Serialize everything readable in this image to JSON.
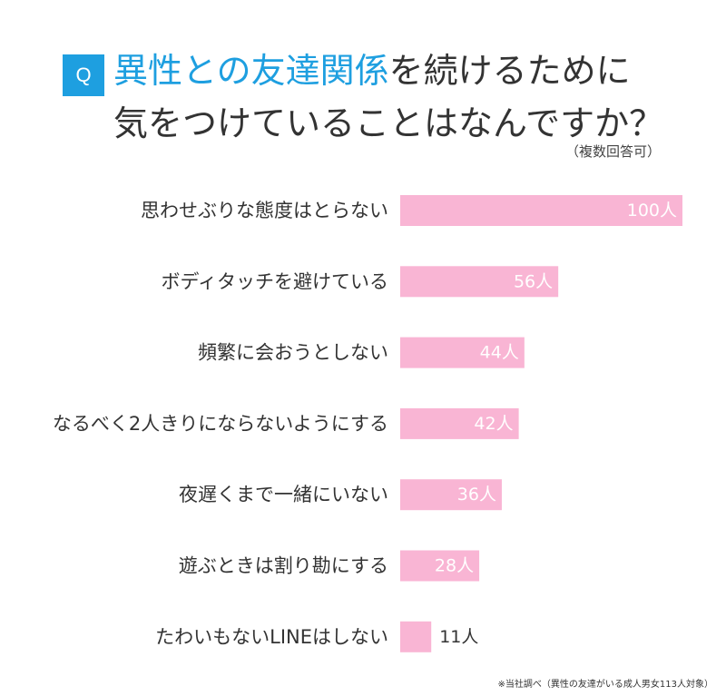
{
  "question": {
    "badge": "Q",
    "title_highlight": "異性との友達関係",
    "title_rest": "を続けるために",
    "title_line2": "気をつけていることはなんですか？",
    "note": "（複数回答可）"
  },
  "colors": {
    "accent": "#1e9fe0",
    "bar": "#f9b5d4",
    "bar_label_inside": "#ffffff",
    "bar_label_outside": "#333333"
  },
  "footnote": "※当社調べ（異性の友達がいる成人男女113人対象）",
  "chart_data": {
    "type": "bar",
    "orientation": "horizontal",
    "categories": [
      "思わせぶりな態度はとらない",
      "ボディタッチを避けている",
      "頻繁に会おうとしない",
      "なるべく2人きりにならないようにする",
      "夜遅くまで一緒にいない",
      "遊ぶときは割り勘にする",
      "たわいもないLINEはしない"
    ],
    "values": [
      100,
      56,
      44,
      42,
      36,
      28,
      11
    ],
    "value_labels": [
      "100人",
      "56人",
      "44人",
      "42人",
      "36人",
      "28人",
      "11人"
    ],
    "title": "",
    "xlabel": "",
    "ylabel": "",
    "grid": false
  }
}
